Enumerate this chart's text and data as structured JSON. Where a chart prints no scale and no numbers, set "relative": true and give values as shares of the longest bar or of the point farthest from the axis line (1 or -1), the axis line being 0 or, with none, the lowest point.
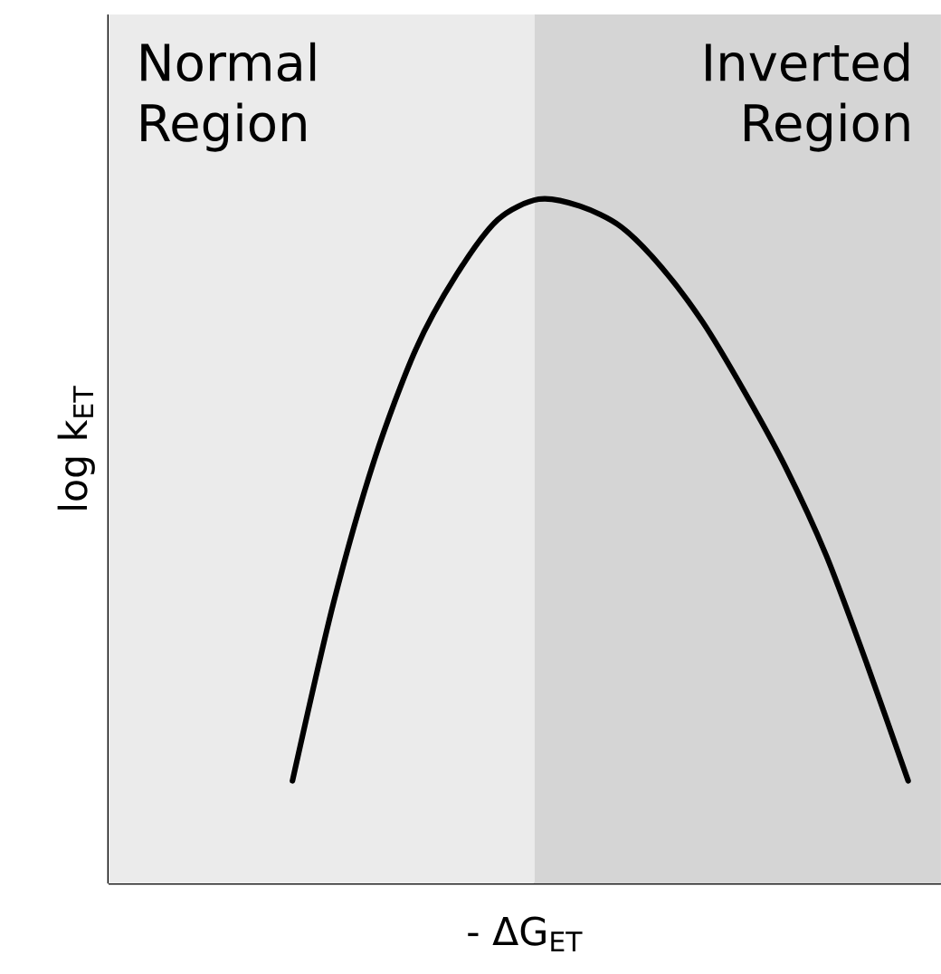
{
  "chart_data": {
    "type": "line",
    "relative": true,
    "xlabel": "- ΔG$_{ET}$",
    "ylabel": "log k$_{ET}$",
    "color": "#000000",
    "marker": "none",
    "line_style": "solid",
    "categories": [
      null,
      null,
      null,
      null,
      null,
      null,
      null,
      null,
      null,
      null,
      null,
      null,
      null,
      null,
      null,
      null
    ],
    "values": [
      0.15,
      0.41,
      0.62,
      0.78,
      0.89,
      0.97,
      1.0,
      0.99,
      0.96,
      0.9,
      0.82,
      0.72,
      0.61,
      0.48,
      0.32,
      0.15
    ],
    "annotations": [
      "Normal Region",
      "Inverted Region"
    ]
  }
}
